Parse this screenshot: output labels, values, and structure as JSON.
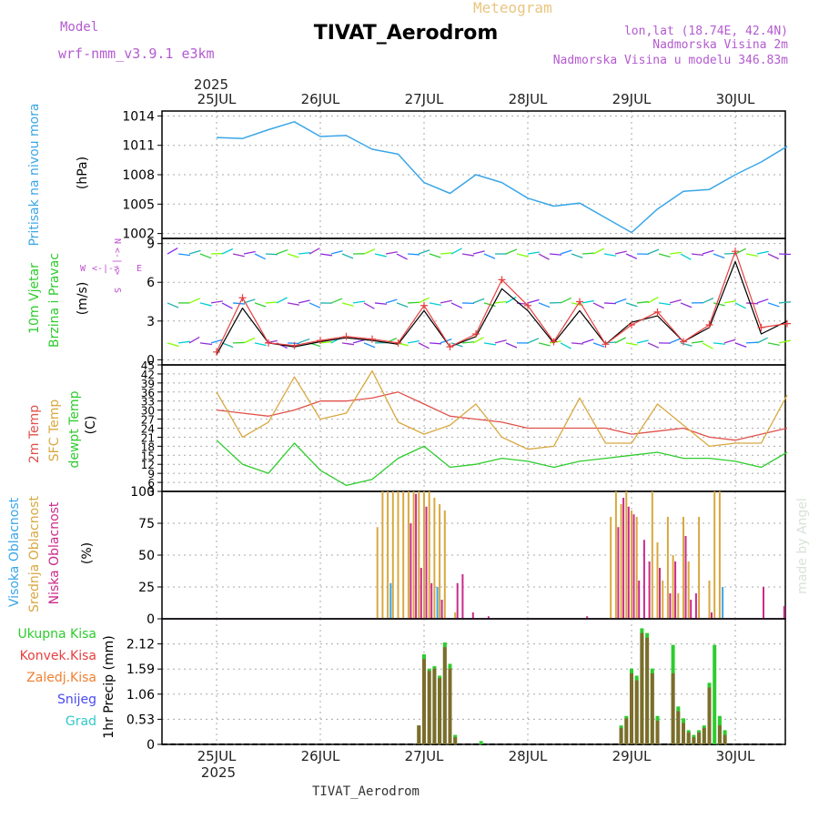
{
  "header": {
    "model_label": "Model",
    "model_name": "wrf-nmm_v3.9.1  e3km",
    "meteogram_label": "Meteogram",
    "station_title": "TIVAT_Aerodrom",
    "lonlat": "lon,lat (18.74E, 42.4N)",
    "elevation": "Nadmorska Visina 2m",
    "model_elevation": "Nadmorska Visina u modelu 346.83m"
  },
  "footer": {
    "station": "TIVAT_Aerodrom",
    "watermark": "made by Angel"
  },
  "time_axis": {
    "year": "2025",
    "days": [
      "25JUL",
      "26JUL",
      "27JUL",
      "28JUL",
      "29JUL",
      "30JUL"
    ]
  },
  "colors": {
    "pressure": "#3aa6e8",
    "wind_speed": "#000000",
    "gust": "#e64040",
    "t2m": "#e0504a",
    "sfc": "#d8a840",
    "dew": "#2ecc2e",
    "high_cloud": "#3aa6e8",
    "mid_cloud": "#d8a840",
    "low_cloud": "#cc2a8a",
    "total_rain": "#2ecc2e",
    "conv_rain": "#e64040",
    "frz_rain": "#f08030",
    "snow": "#4a4af0",
    "graupel": "#35c8c8",
    "wind_dir_label": "#c050d0"
  },
  "chart_data": [
    {
      "type": "line",
      "panel": "pressure",
      "ylabel_left": "Pritisak na nivou mora",
      "unit": "(hPa)",
      "ylim": [
        1001.5,
        1014.5
      ],
      "yticks": [
        1002,
        1005,
        1008,
        1011,
        1014
      ],
      "x_days": [
        0,
        0.25,
        0.5,
        0.75,
        1.0,
        1.25,
        1.5,
        1.75,
        2.0,
        2.25,
        2.5,
        2.75,
        3.0,
        3.25,
        3.5,
        3.75,
        4.0,
        4.25,
        4.5,
        4.75,
        5.0,
        5.25,
        5.5
      ],
      "series": [
        {
          "name": "MSLP",
          "values": [
            1011.8,
            1011.7,
            1012.6,
            1013.4,
            1011.9,
            1012.0,
            1010.6,
            1010.1,
            1007.2,
            1006.1,
            1008.0,
            1007.2,
            1005.6,
            1004.8,
            1005.1,
            1003.6,
            1002.1,
            1004.5,
            1006.3,
            1006.5,
            1008.0,
            1009.3,
            1010.9
          ]
        }
      ]
    },
    {
      "type": "line",
      "panel": "wind",
      "ylabel_left_1": "10m Vjetar",
      "ylabel_left_2": "Brzina i Pravac",
      "unit": "(m/s)",
      "compass": {
        "n": "N",
        "s": "S",
        "e": "E",
        "w": "W"
      },
      "ylim": [
        -0.4,
        9.4
      ],
      "yticks": [
        0,
        3,
        6,
        9
      ],
      "x_days": [
        0,
        0.25,
        0.5,
        0.75,
        1.0,
        1.25,
        1.5,
        1.75,
        2.0,
        2.25,
        2.5,
        2.75,
        3.0,
        3.25,
        3.5,
        3.75,
        4.0,
        4.25,
        4.5,
        4.75,
        5.0,
        5.25,
        5.5
      ],
      "series": [
        {
          "name": "Wind speed",
          "values": [
            0.4,
            4.0,
            1.3,
            1.0,
            1.4,
            1.7,
            1.5,
            1.2,
            3.8,
            1.0,
            1.8,
            5.5,
            3.8,
            1.3,
            3.8,
            1.2,
            2.9,
            3.4,
            1.4,
            2.5,
            7.6,
            2.0,
            3.0
          ]
        },
        {
          "name": "Gust",
          "values": [
            0.6,
            4.8,
            1.3,
            1.1,
            1.5,
            1.8,
            1.6,
            1.3,
            4.2,
            1.0,
            2.0,
            6.2,
            4.2,
            1.4,
            4.5,
            1.2,
            2.7,
            3.7,
            1.4,
            2.7,
            8.4,
            2.5,
            2.8
          ]
        }
      ],
      "arrow_rows_ms": [
        8.2,
        4.4,
        1.3
      ]
    },
    {
      "type": "line",
      "panel": "temperature",
      "ylabel_left_1": "2m Temp",
      "ylabel_left_2": "SFC Temp",
      "ylabel_left_3": "dewpt Temp",
      "unit": "(C)",
      "ylim": [
        3,
        45
      ],
      "yticks": [
        3,
        6,
        9,
        12,
        15,
        18,
        21,
        24,
        27,
        30,
        33,
        36,
        39,
        42,
        45
      ],
      "ytick_labels": [
        "3",
        "6",
        "9",
        "12",
        "15",
        "18",
        "21",
        "24",
        "27",
        "30",
        "33",
        "36",
        "39",
        "42",
        "45"
      ],
      "x_days": [
        0,
        0.25,
        0.5,
        0.75,
        1.0,
        1.25,
        1.5,
        1.75,
        2.0,
        2.25,
        2.5,
        2.75,
        3.0,
        3.25,
        3.5,
        3.75,
        4.0,
        4.25,
        4.5,
        4.75,
        5.0,
        5.25,
        5.5
      ],
      "series": [
        {
          "name": "2m Temp",
          "values": [
            30,
            29,
            28,
            30,
            33,
            33,
            34,
            36,
            32,
            28,
            27,
            26,
            24,
            24,
            24,
            24,
            22,
            23,
            24,
            21,
            20,
            22,
            24
          ]
        },
        {
          "name": "SFC Temp",
          "values": [
            36,
            21,
            26,
            41,
            27,
            29,
            43,
            26,
            22,
            25,
            32,
            21,
            17,
            18,
            34,
            19,
            19,
            32,
            25,
            18,
            19,
            19,
            35
          ]
        },
        {
          "name": "dewpt Temp",
          "values": [
            20,
            12,
            9,
            19,
            10,
            5,
            7,
            14,
            18,
            11,
            12,
            14,
            13,
            11,
            13,
            14,
            15,
            16,
            14,
            14,
            13,
            11,
            16
          ]
        }
      ]
    },
    {
      "type": "bar",
      "panel": "cloud",
      "ylabel_left_1": "Visoka Oblacnost",
      "ylabel_left_2": "Srednja Oblacnost",
      "ylabel_left_3": "Niska Oblacnost",
      "unit": "(%)",
      "ylim": [
        0,
        100
      ],
      "yticks": [
        0,
        25,
        50,
        75,
        100
      ],
      "x_days": [
        1.55,
        1.6,
        1.65,
        1.7,
        1.75,
        1.8,
        1.85,
        1.9,
        1.95,
        2.0,
        2.05,
        2.1,
        2.15,
        2.2,
        2.3,
        2.35,
        2.45,
        2.5,
        2.6,
        3.55,
        3.8,
        3.85,
        3.9,
        3.95,
        4.0,
        4.05,
        4.1,
        4.15,
        4.2,
        4.25,
        4.3,
        4.35,
        4.4,
        4.45,
        4.5,
        4.55,
        4.6,
        4.65,
        4.75,
        4.8,
        4.85,
        4.9,
        4.95,
        5.25,
        5.45
      ],
      "series": [
        {
          "name": "Visoka Oblacnost",
          "values": [
            0,
            0,
            0,
            28,
            0,
            0,
            0,
            0,
            0,
            0,
            0,
            0,
            25,
            0,
            0,
            0,
            0,
            0,
            0,
            0,
            0,
            0,
            0,
            0,
            0,
            0,
            0,
            0,
            0,
            0,
            0,
            0,
            0,
            0,
            0,
            0,
            0,
            0,
            0,
            0,
            0,
            25,
            0,
            0,
            0
          ]
        },
        {
          "name": "Srednja Oblacnost",
          "values": [
            72,
            100,
            100,
            100,
            100,
            100,
            100,
            100,
            100,
            100,
            100,
            95,
            90,
            85,
            5,
            0,
            0,
            0,
            0,
            0,
            80,
            100,
            90,
            100,
            85,
            80,
            0,
            0,
            100,
            60,
            30,
            80,
            50,
            20,
            80,
            45,
            0,
            80,
            30,
            100,
            100,
            0,
            0,
            0,
            0
          ]
        },
        {
          "name": "Niska Oblacnost",
          "values": [
            0,
            0,
            0,
            0,
            0,
            0,
            75,
            98,
            40,
            88,
            28,
            0,
            15,
            0,
            28,
            35,
            5,
            0,
            2,
            2,
            0,
            72,
            95,
            88,
            82,
            30,
            62,
            45,
            0,
            40,
            0,
            20,
            45,
            0,
            65,
            15,
            20,
            0,
            5,
            0,
            0,
            0,
            0,
            25,
            10
          ]
        }
      ]
    },
    {
      "type": "bar",
      "panel": "precip",
      "legend": [
        "Ukupna Kisa",
        "Konvek.Kisa",
        "Zaledj.Kisa",
        "Snijeg",
        "Grad"
      ],
      "unit": "1hr Precip (mm)",
      "ylim": [
        0,
        2.65
      ],
      "yticks": [
        0,
        0.53,
        1.06,
        1.59,
        2.12
      ],
      "ytick_labels": [
        "0",
        "0.53",
        "1.06",
        "1.59",
        "2.12"
      ],
      "x_days": [
        1.95,
        2.0,
        2.05,
        2.1,
        2.15,
        2.2,
        2.25,
        2.3,
        2.55,
        3.9,
        3.95,
        4.0,
        4.05,
        4.1,
        4.15,
        4.2,
        4.25,
        4.4,
        4.45,
        4.5,
        4.55,
        4.6,
        4.65,
        4.7,
        4.75,
        4.8,
        4.85,
        4.9
      ],
      "series": [
        {
          "name": "Ukupna Kisa",
          "values": [
            0.4,
            1.9,
            1.6,
            1.65,
            1.45,
            2.15,
            1.7,
            0.2,
            0.07,
            0.4,
            0.6,
            1.6,
            1.45,
            2.45,
            2.35,
            1.6,
            0.6,
            2.1,
            0.8,
            0.55,
            0.3,
            0.2,
            0.3,
            0.4,
            1.3,
            2.1,
            0.6,
            0.3
          ]
        },
        {
          "name": "Konvek.Kisa",
          "values": [
            0.4,
            1.8,
            1.55,
            1.6,
            1.4,
            2.05,
            1.6,
            0.15,
            0,
            0.35,
            0.55,
            1.5,
            1.35,
            2.35,
            2.25,
            1.5,
            0.5,
            1.5,
            0.7,
            0.45,
            0.25,
            0.15,
            0.25,
            0.35,
            1.2,
            0.0,
            0.4,
            0.2
          ]
        }
      ]
    }
  ]
}
